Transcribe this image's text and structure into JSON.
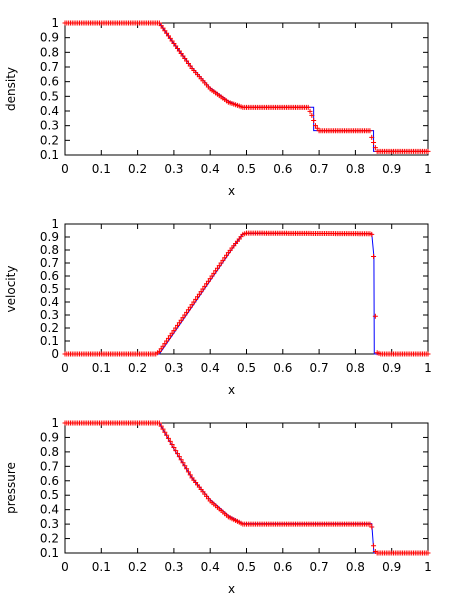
{
  "chart_data": [
    {
      "type": "line",
      "xlabel": "x",
      "ylabel": "density",
      "xlim": [
        0,
        1
      ],
      "ylim": [
        0.1,
        1
      ],
      "xticks": [
        "0",
        "0.1",
        "0.2",
        "0.3",
        "0.4",
        "0.5",
        "0.6",
        "0.7",
        "0.8",
        "0.9",
        "1"
      ],
      "yticks": [
        "0.1",
        "0.2",
        "0.3",
        "0.4",
        "0.5",
        "0.6",
        "0.7",
        "0.8",
        "0.9",
        "1"
      ],
      "grid": false,
      "series": [
        {
          "style": "line",
          "color": "#0000ff",
          "x": [
            0,
            0.26,
            0.3,
            0.35,
            0.4,
            0.45,
            0.49,
            0.685,
            0.685,
            0.85,
            0.85,
            1.0
          ],
          "y": [
            1.0,
            1.0,
            0.858,
            0.697,
            0.558,
            0.468,
            0.426,
            0.426,
            0.266,
            0.266,
            0.125,
            0.125
          ]
        },
        {
          "style": "markers",
          "color": "#ff0000",
          "marker": "plus",
          "x": [
            0,
            0.26,
            0.3,
            0.35,
            0.4,
            0.45,
            0.49,
            0.67,
            0.68,
            0.69,
            0.7,
            0.84,
            0.845,
            0.855,
            0.86,
            1.0
          ],
          "y": [
            1.0,
            1.0,
            0.86,
            0.69,
            0.55,
            0.46,
            0.425,
            0.425,
            0.37,
            0.3,
            0.265,
            0.265,
            0.22,
            0.15,
            0.125,
            0.125
          ]
        }
      ]
    },
    {
      "type": "line",
      "xlabel": "x",
      "ylabel": "velocity",
      "xlim": [
        0,
        1
      ],
      "ylim": [
        0,
        1
      ],
      "xticks": [
        "0",
        "0.1",
        "0.2",
        "0.3",
        "0.4",
        "0.5",
        "0.6",
        "0.7",
        "0.8",
        "0.9",
        "1"
      ],
      "yticks": [
        "0",
        "0.1",
        "0.2",
        "0.3",
        "0.4",
        "0.5",
        "0.6",
        "0.7",
        "0.8",
        "0.9",
        "1"
      ],
      "grid": false,
      "series": [
        {
          "style": "line",
          "color": "#0000ff",
          "x": [
            0,
            0.26,
            0.49,
            0.845,
            0.851,
            0.852,
            1.0
          ],
          "y": [
            0,
            0,
            0.927,
            0.927,
            0.75,
            0,
            0
          ]
        },
        {
          "style": "markers",
          "color": "#ff0000",
          "marker": "plus",
          "x": [
            0,
            0.25,
            0.26,
            0.3,
            0.35,
            0.4,
            0.45,
            0.49,
            0.5,
            0.84,
            0.845,
            0.85,
            0.855,
            0.86,
            0.87,
            1.0
          ],
          "y": [
            0,
            0,
            0.02,
            0.18,
            0.38,
            0.58,
            0.78,
            0.92,
            0.93,
            0.925,
            0.92,
            0.75,
            0.29,
            0.01,
            0,
            0
          ]
        }
      ]
    },
    {
      "type": "line",
      "xlabel": "x",
      "ylabel": "pressure",
      "xlim": [
        0,
        1
      ],
      "ylim": [
        0.1,
        1
      ],
      "xticks": [
        "0",
        "0.1",
        "0.2",
        "0.3",
        "0.4",
        "0.5",
        "0.6",
        "0.7",
        "0.8",
        "0.9",
        "1"
      ],
      "yticks": [
        "0.1",
        "0.2",
        "0.3",
        "0.4",
        "0.5",
        "0.6",
        "0.7",
        "0.8",
        "0.9",
        "1"
      ],
      "grid": false,
      "series": [
        {
          "style": "line",
          "color": "#0000ff",
          "x": [
            0,
            0.26,
            0.3,
            0.35,
            0.4,
            0.45,
            0.49,
            0.845,
            0.851,
            0.851,
            1.0
          ],
          "y": [
            1.0,
            1.0,
            0.82,
            0.62,
            0.47,
            0.36,
            0.303,
            0.303,
            0.1,
            0.1,
            0.1
          ],
          "_": ""
        },
        {
          "style": "markers",
          "color": "#ff0000",
          "marker": "plus",
          "x": [
            0,
            0.26,
            0.3,
            0.35,
            0.4,
            0.45,
            0.49,
            0.84,
            0.845,
            0.85,
            0.855,
            0.86,
            1.0
          ],
          "y": [
            1.0,
            1.0,
            0.83,
            0.62,
            0.46,
            0.35,
            0.3,
            0.3,
            0.28,
            0.15,
            0.11,
            0.1,
            0.1
          ]
        }
      ]
    }
  ]
}
